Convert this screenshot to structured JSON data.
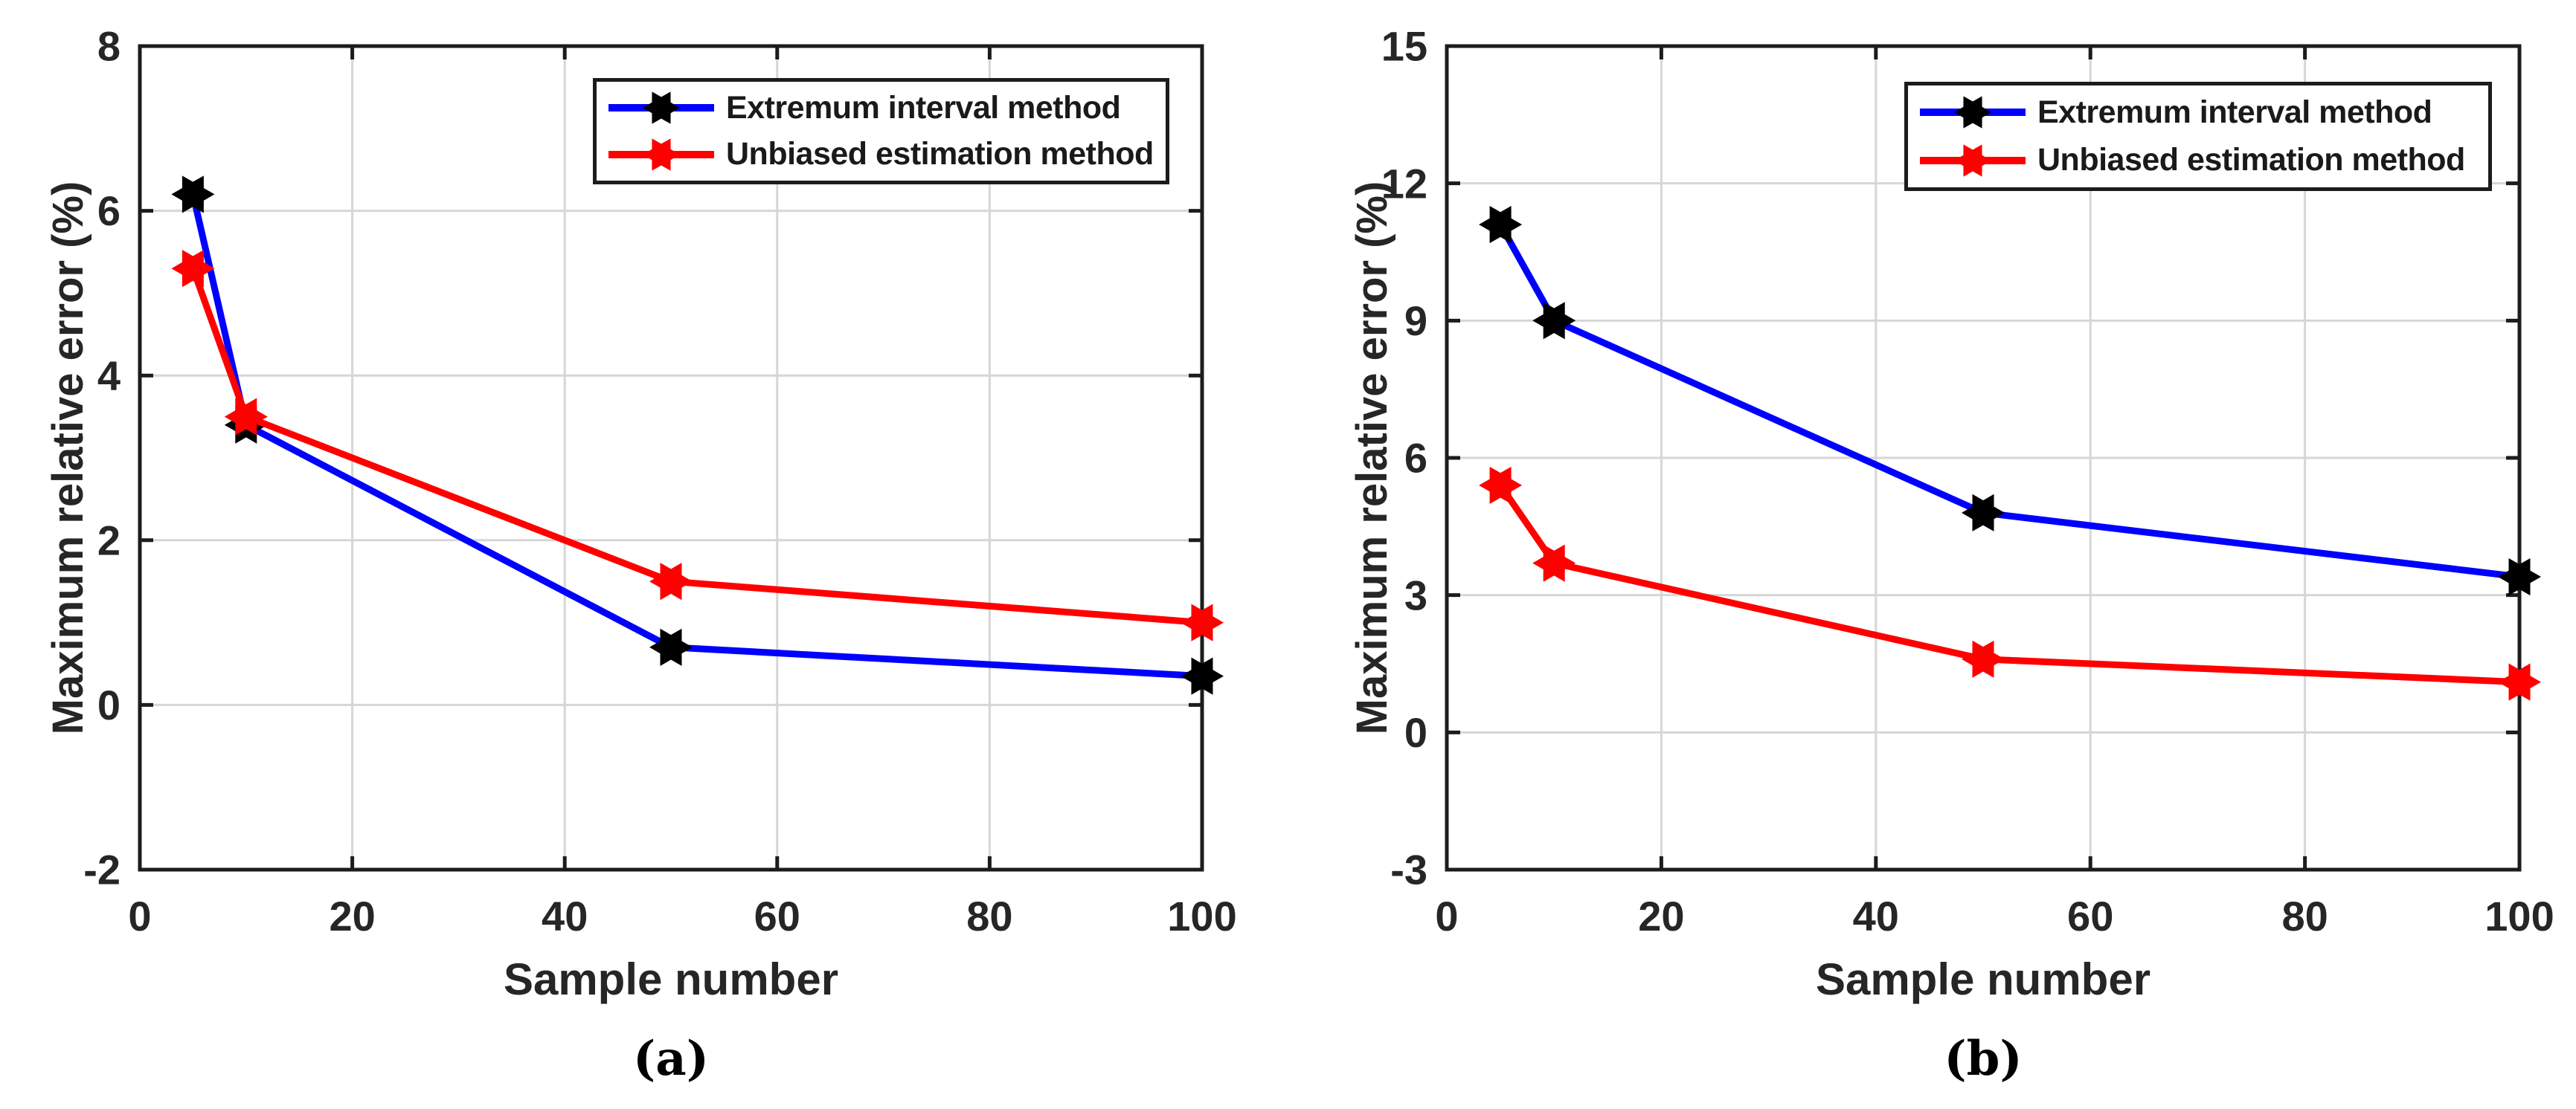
{
  "figure": {
    "background": "#ffffff",
    "axis_color": "#1c1c1c",
    "grid_color": "#d6d6d6",
    "tick_label_color": "#262626"
  },
  "chart_data": [
    {
      "id": "a",
      "type": "line",
      "caption": "(a)",
      "xlabel": "Sample number",
      "ylabel": "Maximum relative error (%)",
      "x": [
        5,
        10,
        50,
        100
      ],
      "series": [
        {
          "name": "Extremum interval method",
          "line_color": "#0000ff",
          "marker_color": "#000000",
          "values": [
            6.2,
            3.4,
            0.7,
            0.35
          ]
        },
        {
          "name": "Unbiased estimation method",
          "line_color": "#ff0000",
          "marker_color": "#ff0000",
          "values": [
            5.3,
            3.5,
            1.5,
            1.0
          ]
        }
      ],
      "xlim": [
        0,
        100
      ],
      "ylim": [
        -2,
        8
      ],
      "xticks": [
        0,
        20,
        40,
        60,
        80,
        100
      ],
      "yticks": [
        -2,
        0,
        2,
        4,
        6,
        8
      ],
      "grid": true,
      "legend_position": "top-right"
    },
    {
      "id": "b",
      "type": "line",
      "caption": "(b)",
      "xlabel": "Sample number",
      "ylabel": "Maximum relative error (%)",
      "x": [
        5,
        10,
        50,
        100
      ],
      "series": [
        {
          "name": "Extremum interval method",
          "line_color": "#0000ff",
          "marker_color": "#000000",
          "values": [
            11.1,
            9.0,
            4.8,
            3.4
          ]
        },
        {
          "name": "Unbiased estimation method",
          "line_color": "#ff0000",
          "marker_color": "#ff0000",
          "values": [
            5.4,
            3.7,
            1.6,
            1.1
          ]
        }
      ],
      "xlim": [
        0,
        100
      ],
      "ylim": [
        -3,
        15
      ],
      "xticks": [
        0,
        20,
        40,
        60,
        80,
        100
      ],
      "yticks": [
        -3,
        0,
        3,
        6,
        9,
        12,
        15
      ],
      "grid": true,
      "legend_position": "top-right"
    }
  ]
}
